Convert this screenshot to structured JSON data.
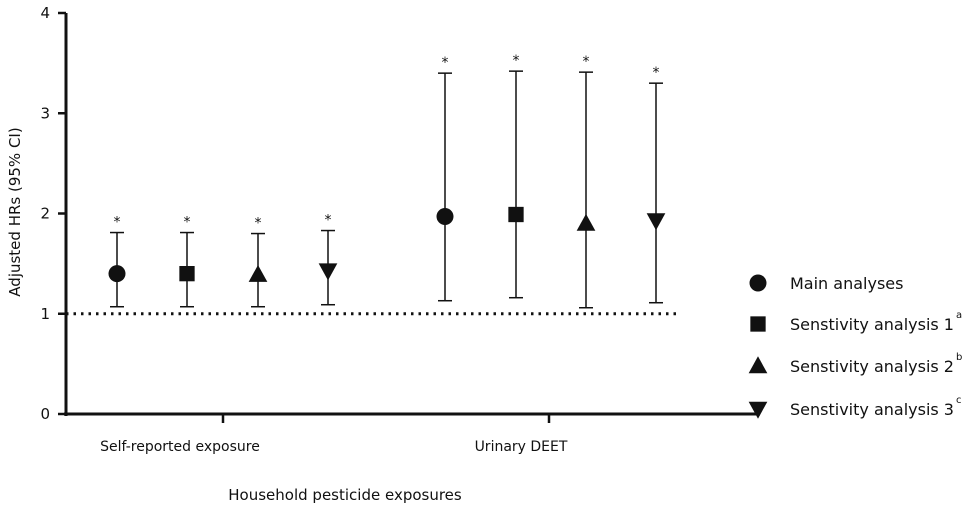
{
  "chart_data": {
    "type": "scatter",
    "title": "",
    "xlabel": "Household pesticide exposures",
    "ylabel": "Adjusted HRs (95% CI)",
    "ylim": [
      0,
      4
    ],
    "yticks": [
      "0",
      "1",
      "2",
      "3",
      "4"
    ],
    "reference_line": 1,
    "categories": [
      "Self-reported exposure",
      "Urinary DEET"
    ],
    "significance_mark": "*",
    "series": [
      {
        "name": "Main analyses",
        "superscript": "",
        "marker": "circle",
        "points": [
          {
            "category": "Self-reported exposure",
            "hr": 1.4,
            "lower": 1.07,
            "upper": 1.81
          },
          {
            "category": "Urinary DEET",
            "hr": 1.97,
            "lower": 1.13,
            "upper": 3.4
          }
        ]
      },
      {
        "name": "Senstivity analysis 1",
        "superscript": "a",
        "marker": "square",
        "points": [
          {
            "category": "Self-reported exposure",
            "hr": 1.4,
            "lower": 1.07,
            "upper": 1.81
          },
          {
            "category": "Urinary DEET",
            "hr": 1.99,
            "lower": 1.16,
            "upper": 3.42
          }
        ]
      },
      {
        "name": "Senstivity analysis 2",
        "superscript": "b",
        "marker": "triangle-up",
        "points": [
          {
            "category": "Self-reported exposure",
            "hr": 1.39,
            "lower": 1.07,
            "upper": 1.8
          },
          {
            "category": "Urinary DEET",
            "hr": 1.9,
            "lower": 1.06,
            "upper": 3.41
          }
        ]
      },
      {
        "name": "Senstivity analysis 3",
        "superscript": "c",
        "marker": "triangle-down",
        "points": [
          {
            "category": "Self-reported exposure",
            "hr": 1.43,
            "lower": 1.09,
            "upper": 1.83
          },
          {
            "category": "Urinary DEET",
            "hr": 1.93,
            "lower": 1.11,
            "upper": 3.3
          }
        ]
      }
    ],
    "legend_position": "right",
    "grid": false
  }
}
